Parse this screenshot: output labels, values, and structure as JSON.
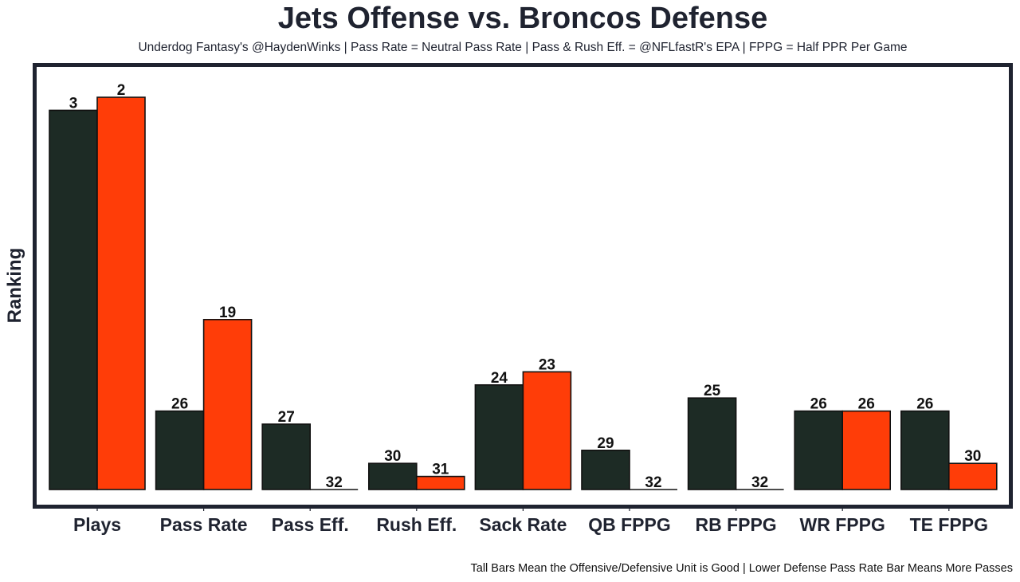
{
  "chart_data": {
    "type": "bar",
    "title": "Jets Offense vs. Broncos Defense",
    "subtitle": "Underdog Fantasy's @HaydenWinks | Pass Rate = Neutral Pass Rate | Pass & Rush Eff. = @NFLfastR's EPA | FPPG = Half PPR Per Game",
    "xlabel": "",
    "ylabel": "Ranking",
    "footnote": "Tall Bars Mean the Offensive/Defensive Unit is Good | Lower Defense Pass Rate Bar Means More Passes",
    "categories": [
      "Plays",
      "Pass Rate",
      "Pass Eff.",
      "Rush Eff.",
      "Sack Rate",
      "QB FPPG",
      "RB FPPG",
      "WR FPPG",
      "TE FPPG"
    ],
    "series": [
      {
        "name": "Jets Offense",
        "color": "#1d2b25",
        "values": [
          3,
          26,
          27,
          30,
          24,
          29,
          25,
          26,
          26
        ]
      },
      {
        "name": "Broncos Defense",
        "color": "#ff3d08",
        "values": [
          2,
          19,
          32,
          31,
          23,
          32,
          32,
          26,
          30
        ]
      }
    ],
    "bar_height_rule": "height = 32 - rank (rank 1 tallest, rank 32 flat)",
    "ylim": [
      0,
      31
    ],
    "grid": false,
    "legend": "none",
    "y_ticks_shown": false
  }
}
